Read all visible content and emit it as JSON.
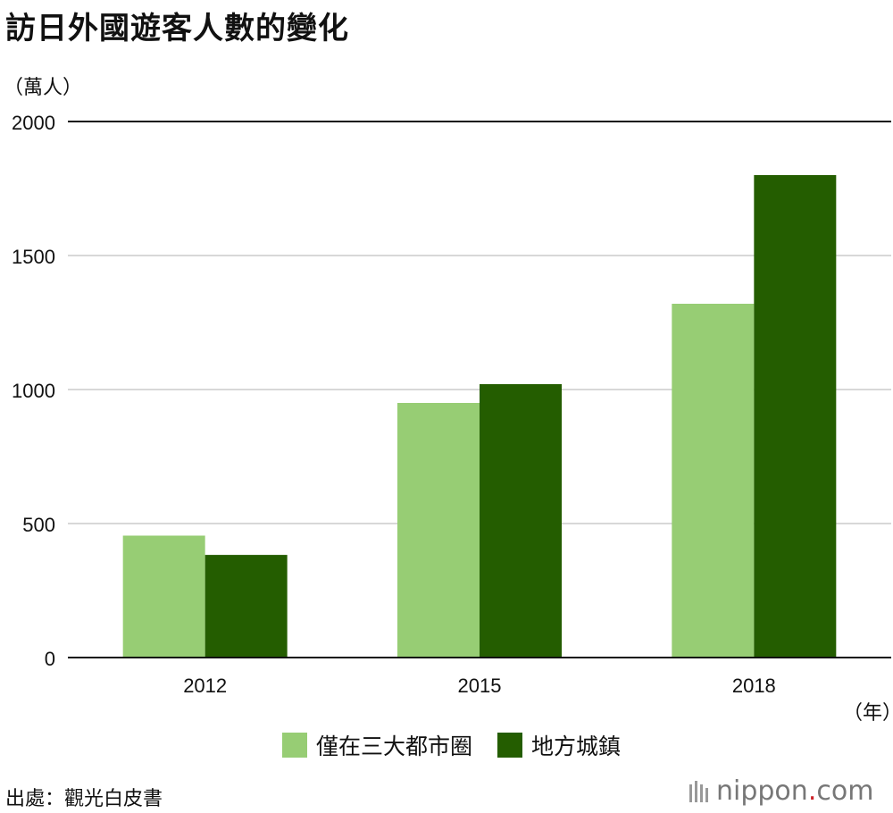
{
  "title": "訪日外國遊客人數的變化",
  "y_unit": "（萬人）",
  "x_unit": "（年）",
  "source": "出處：觀光白皮書",
  "brand": {
    "name": "nippon",
    "dot": ".",
    "tld": "com"
  },
  "colors": {
    "light": "#97cd74",
    "dark": "#245d00",
    "brand_dot": "#cc2229"
  },
  "chart_data": {
    "type": "bar",
    "categories": [
      "2012",
      "2015",
      "2018"
    ],
    "series": [
      {
        "name": "僅在三大都市圈",
        "values": [
          455,
          950,
          1320
        ]
      },
      {
        "name": "地方城鎮",
        "values": [
          383,
          1020,
          1800
        ]
      }
    ],
    "ylim": [
      0,
      2000
    ],
    "yticks": [
      0,
      500,
      1000,
      1500,
      2000
    ],
    "grid": true,
    "legend_position": "bottom"
  }
}
